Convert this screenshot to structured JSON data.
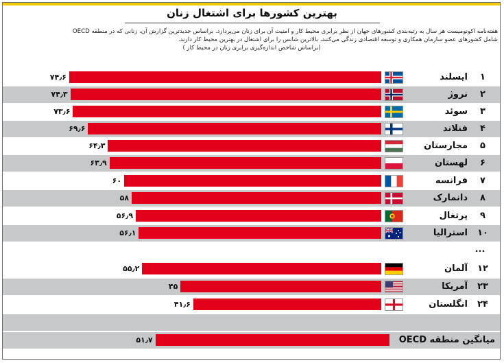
{
  "title": "بهترین کشورها برای اشتغال زنان",
  "description": [
    "هفته‌نامه اکونومیست هر سال به رتبه‌بندی کشورهای جهان از نظر برابری محیط کار و امنیت آن برای زنان می‌پردازد.  براساس جدیدترین گزارش آن، زنانی که در منطقه OECD",
    "شامل کشورهای عضو سازمان همکاری و توسعه اقتصادی زندگی می‌کنند، بالاترین شانس را برای اشتغال در بهترین محیط کار دارند.",
    "(براساس شاخص اندازه‌گیری برابری زنان در محیط کار )"
  ],
  "ellipsis": "...",
  "chart_data": {
    "type": "bar",
    "orientation": "horizontal",
    "title": "بهترین کشورها برای اشتغال زنان",
    "xlim": [
      0,
      74.6
    ],
    "grid": false,
    "rows": [
      {
        "rank": "۱",
        "country": "ایسلند",
        "value": 74.6,
        "label": "۷۴٫۶",
        "flag": "iceland-flag"
      },
      {
        "rank": "۲",
        "country": "نروژ",
        "value": 74.3,
        "label": "۷۴٫۳",
        "flag": "norway-flag"
      },
      {
        "rank": "۳",
        "country": "سوئد",
        "value": 73.6,
        "label": "۷۳٫۶",
        "flag": "sweden-flag"
      },
      {
        "rank": "۴",
        "country": "فنلاند",
        "value": 69.6,
        "label": "۶۹٫۶",
        "flag": "finland-flag"
      },
      {
        "rank": "۵",
        "country": "مجارستان",
        "value": 64.3,
        "label": "۶۴٫۳",
        "flag": "hungary-flag"
      },
      {
        "rank": "۶",
        "country": "لهستان",
        "value": 63.9,
        "label": "۶۳٫۹",
        "flag": "poland-flag"
      },
      {
        "rank": "۷",
        "country": "فرانسه",
        "value": 60,
        "label": "۶۰",
        "flag": "france-flag"
      },
      {
        "rank": "۸",
        "country": "دانمارک",
        "value": 58,
        "label": "۵۸",
        "flag": "denmark-flag"
      },
      {
        "rank": "۹",
        "country": "پرتغال",
        "value": 56.9,
        "label": "۵۶٫۹",
        "flag": "portugal-flag"
      },
      {
        "rank": "۱۰",
        "country": "استرالیا",
        "value": 56.1,
        "label": "۵۶٫۱",
        "flag": "australia-flag"
      },
      {
        "rank": "۱۲",
        "country": "آلمان",
        "value": 55.2,
        "label": "۵۵٫۲",
        "flag": "germany-flag"
      },
      {
        "rank": "۲۳",
        "country": "آمریکا",
        "value": 45,
        "label": "۴۵",
        "flag": "usa-flag"
      },
      {
        "rank": "۲۴",
        "country": "انگلستان",
        "value": 41.6,
        "label": "۴۱٫۶",
        "flag": "england-flag"
      }
    ],
    "oecd": {
      "country": "میانگین منطقه OECD",
      "value": 51.7,
      "label": "۵۱٫۷"
    }
  },
  "colors": {
    "bar": "#e3001b",
    "band": "#c7c8ca",
    "accent": "#f0c800"
  }
}
